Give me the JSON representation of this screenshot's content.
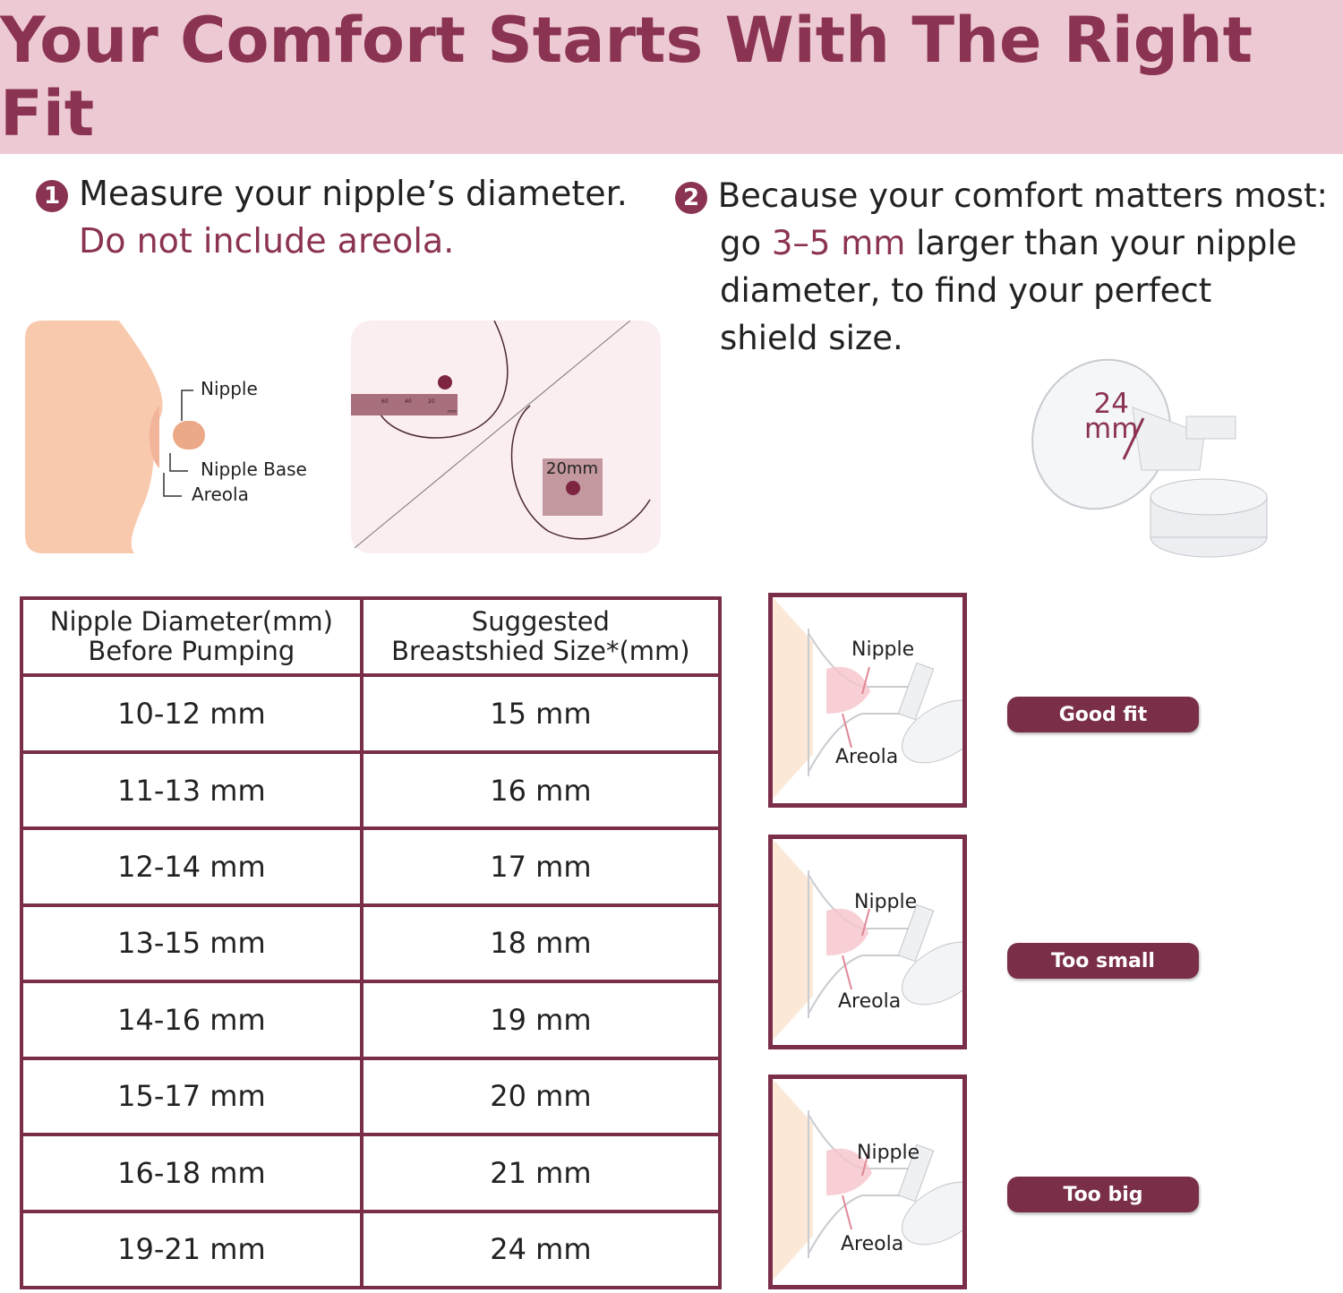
{
  "title": "Your Comfort Starts With The Right Fit",
  "step1": {
    "number": "1",
    "line1": "Measure your nipple’s diameter.",
    "line2": "Do not include areola."
  },
  "step2": {
    "number": "2",
    "line1": "Because your comfort matters most:",
    "line2_pre": "go ",
    "line2_accent": "3–5 mm",
    "line2_post": " larger than your nipple",
    "line3": "diameter, to find your perfect",
    "line4": "shield size."
  },
  "diagram1": {
    "nipple": "Nipple",
    "nipple_base": "Nipple Base",
    "areola": "Areola"
  },
  "diagram2": {
    "ruler_ticks": [
      "60",
      "40",
      "20",
      "mm"
    ],
    "measure": "20mm"
  },
  "shield": {
    "size": "24",
    "unit": "mm"
  },
  "table": {
    "headers": [
      [
        "Nipple Diameter(mm)",
        "Before Pumping"
      ],
      [
        "Suggested",
        "Breastshied Size*(mm)"
      ]
    ],
    "rows": [
      [
        "10-12 mm",
        "15 mm"
      ],
      [
        "11-13 mm",
        "16 mm"
      ],
      [
        "12-14 mm",
        "17 mm"
      ],
      [
        "13-15 mm",
        "18 mm"
      ],
      [
        "14-16 mm",
        "19 mm"
      ],
      [
        "15-17 mm",
        "20 mm"
      ],
      [
        "16-18 mm",
        "21 mm"
      ],
      [
        "19-21 mm",
        "24 mm"
      ]
    ]
  },
  "fits": [
    {
      "nipple": "Nipple",
      "areola": "Areola",
      "label": "Good fit"
    },
    {
      "nipple": "Nipple",
      "areola": "Areola",
      "label": "Too small"
    },
    {
      "nipple": "Nipple",
      "areola": "Areola",
      "label": "Too big"
    }
  ],
  "colors": {
    "accent": "#8b3352",
    "header_bg": "#edcad3",
    "table_border": "#7a2e4a",
    "badge": "#7a2e48"
  }
}
